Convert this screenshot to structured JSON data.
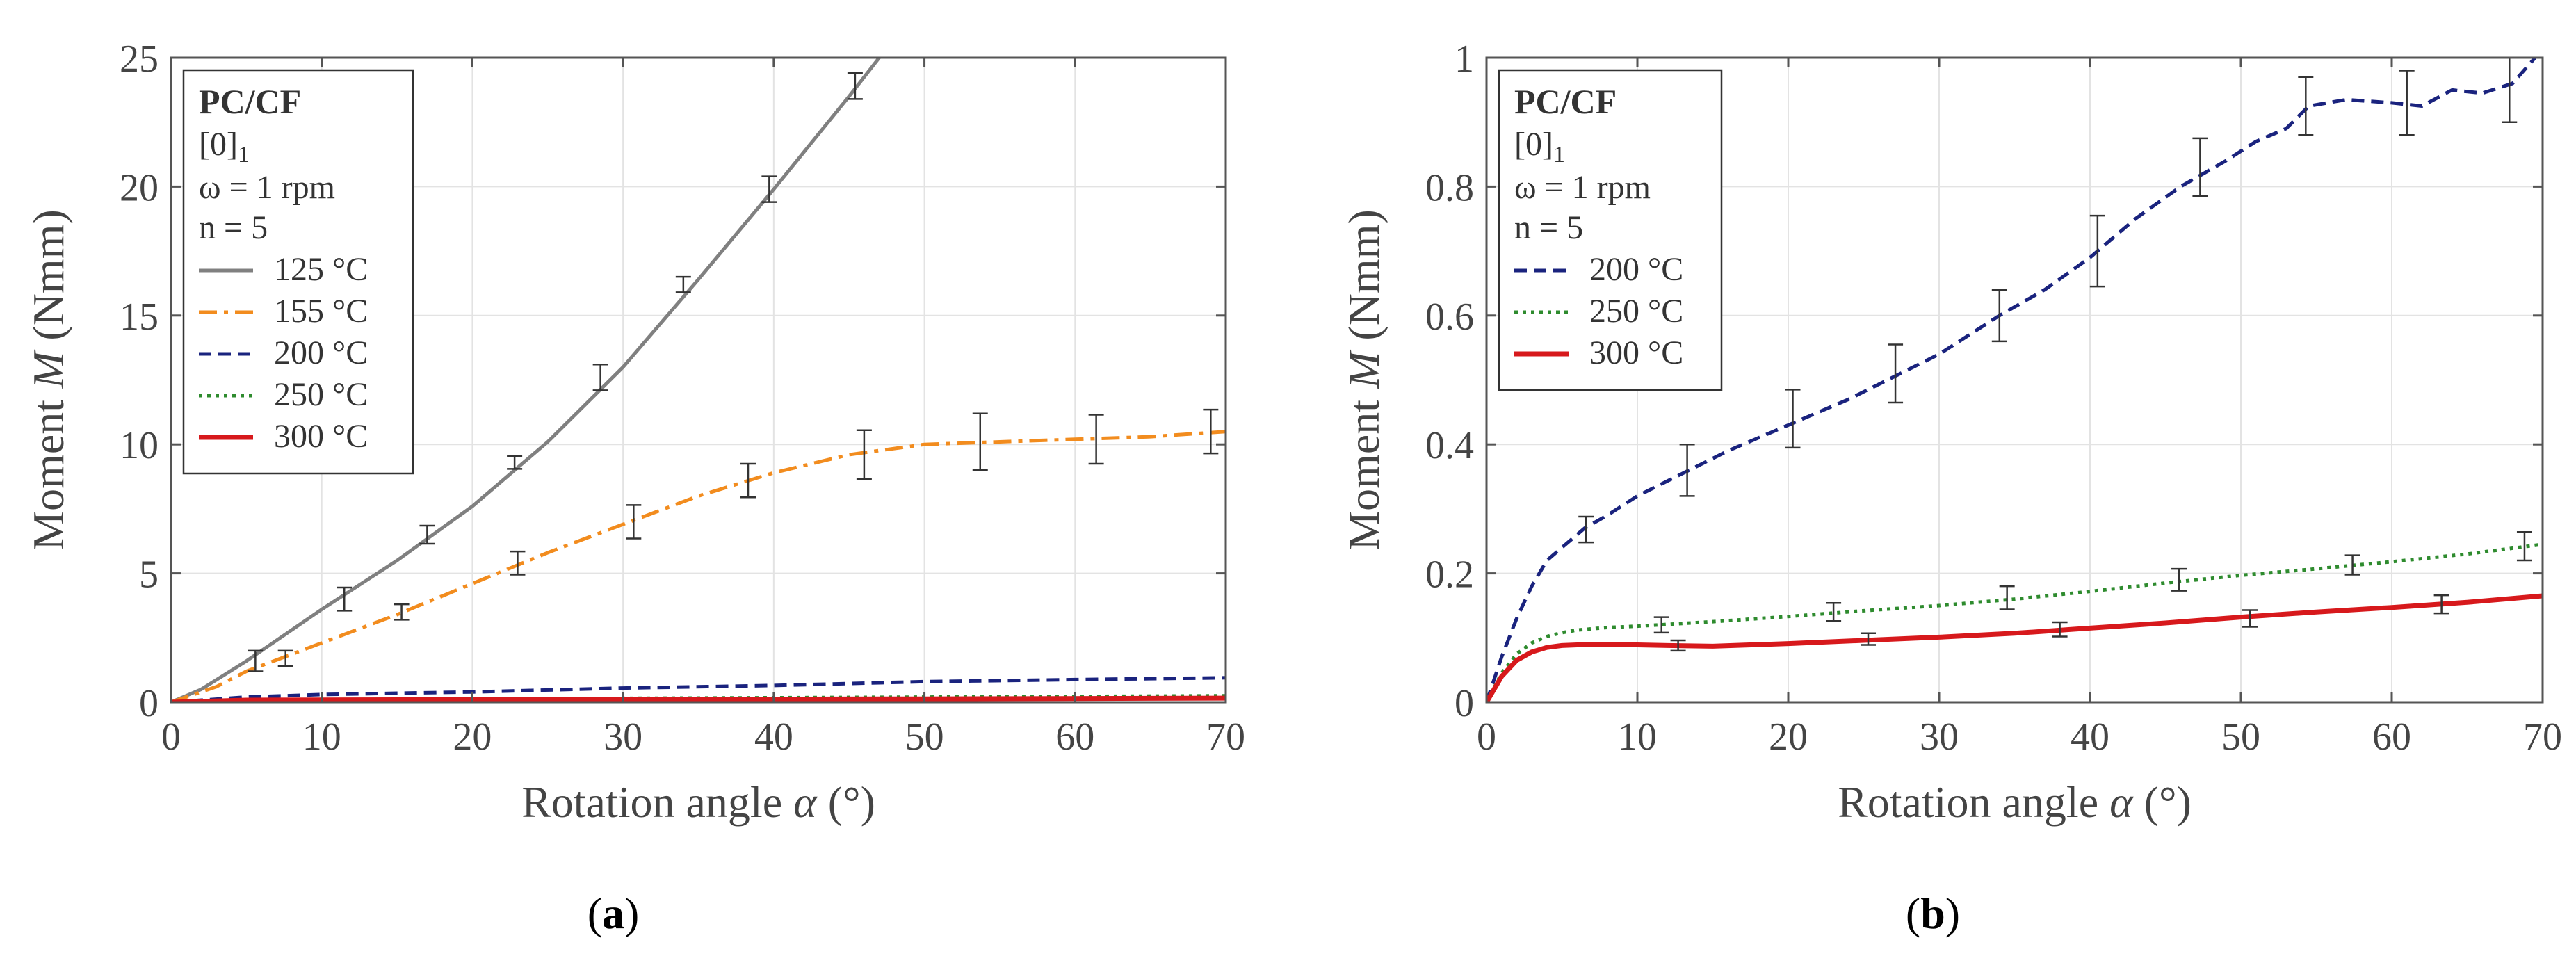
{
  "chart_data": [
    {
      "type": "line",
      "panel_label": "(a)",
      "caption": {
        "open": "(",
        "letter": "a",
        "close": ")"
      },
      "xlabel": {
        "pre": "Rotation angle ",
        "sym": "α",
        "post": " (°)"
      },
      "ylabel": {
        "pre": "Moment ",
        "sym": "M",
        "post": " (Nmm)"
      },
      "xlim": [
        0,
        70
      ],
      "ylim": [
        0,
        25
      ],
      "xticks": [
        0,
        10,
        20,
        30,
        40,
        50,
        60,
        70
      ],
      "yticks": [
        0,
        5,
        10,
        15,
        20,
        25
      ],
      "grid": true,
      "legend": {
        "placement": "top-left",
        "material": "PC/CF",
        "layup": "[0]",
        "layup_sub": "1",
        "speed": "ω = 1 rpm",
        "n": "n = 5"
      },
      "series": [
        {
          "name": "125 °C",
          "color": "#808080",
          "dash": "solid",
          "x": [
            0,
            2,
            5,
            10,
            15,
            20,
            25,
            30,
            35,
            40,
            45,
            47
          ],
          "y": [
            0,
            0.5,
            1.6,
            3.6,
            5.5,
            7.6,
            10.1,
            13.0,
            16.4,
            19.9,
            23.5,
            25.0
          ],
          "errorbars": [
            {
              "x": 5.6,
              "y": 1.6,
              "e": 0.4
            },
            {
              "x": 11.5,
              "y": 4.0,
              "e": 0.45
            },
            {
              "x": 17.0,
              "y": 6.5,
              "e": 0.35
            },
            {
              "x": 22.8,
              "y": 9.3,
              "e": 0.25
            },
            {
              "x": 28.5,
              "y": 12.6,
              "e": 0.5
            },
            {
              "x": 34.0,
              "y": 16.2,
              "e": 0.3
            },
            {
              "x": 39.7,
              "y": 19.9,
              "e": 0.5
            },
            {
              "x": 45.4,
              "y": 23.9,
              "e": 0.5
            }
          ]
        },
        {
          "name": "155 °C",
          "color": "#f28c1e",
          "dash": "dashdot",
          "x": [
            0,
            3,
            5,
            10,
            15,
            20,
            25,
            30,
            35,
            40,
            45,
            50,
            55,
            60,
            65,
            70
          ],
          "y": [
            0,
            0.6,
            1.2,
            2.3,
            3.4,
            4.6,
            5.8,
            6.9,
            8.0,
            8.9,
            9.6,
            10.0,
            10.1,
            10.2,
            10.3,
            10.5
          ],
          "errorbars": [
            {
              "x": 7.6,
              "y": 1.7,
              "e": 0.3
            },
            {
              "x": 15.3,
              "y": 3.5,
              "e": 0.3
            },
            {
              "x": 23.0,
              "y": 5.4,
              "e": 0.45
            },
            {
              "x": 30.7,
              "y": 7.0,
              "e": 0.65
            },
            {
              "x": 38.3,
              "y": 8.6,
              "e": 0.65
            },
            {
              "x": 46.0,
              "y": 9.6,
              "e": 0.95
            },
            {
              "x": 53.7,
              "y": 10.1,
              "e": 1.1
            },
            {
              "x": 61.4,
              "y": 10.2,
              "e": 0.95
            },
            {
              "x": 69.0,
              "y": 10.5,
              "e": 0.85
            }
          ]
        },
        {
          "name": "200 °C",
          "color": "#1a237e",
          "dash": "dashed",
          "x": [
            0,
            5,
            10,
            20,
            30,
            40,
            50,
            60,
            70
          ],
          "y": [
            0,
            0.2,
            0.3,
            0.4,
            0.55,
            0.65,
            0.8,
            0.88,
            0.95
          ],
          "errorbars": []
        },
        {
          "name": "250 °C",
          "color": "#2e8b2e",
          "dash": "dotted",
          "x": [
            0,
            10,
            30,
            50,
            70
          ],
          "y": [
            0,
            0.1,
            0.15,
            0.2,
            0.25
          ],
          "errorbars": []
        },
        {
          "name": "300 °C",
          "color": "#d7191c",
          "dash": "solid",
          "x": [
            0,
            5,
            10,
            30,
            50,
            70
          ],
          "y": [
            0,
            0.08,
            0.09,
            0.11,
            0.13,
            0.16
          ],
          "errorbars": []
        }
      ]
    },
    {
      "type": "line",
      "panel_label": "(b)",
      "caption": {
        "open": "(",
        "letter": "b",
        "close": ")"
      },
      "xlabel": {
        "pre": "Rotation angle ",
        "sym": "α",
        "post": " (°)"
      },
      "ylabel": {
        "pre": "Moment ",
        "sym": "M",
        "post": " (Nmm)"
      },
      "xlim": [
        0,
        70
      ],
      "ylim": [
        0,
        1
      ],
      "xticks": [
        0,
        10,
        20,
        30,
        40,
        50,
        60,
        70
      ],
      "yticks": [
        0,
        0.2,
        0.4,
        0.6,
        0.8,
        1
      ],
      "grid": true,
      "legend": {
        "placement": "top-left",
        "material": "PC/CF",
        "layup": "[0]",
        "layup_sub": "1",
        "speed": "ω = 1 rpm",
        "n": "n = 5"
      },
      "series": [
        {
          "name": "200 °C",
          "color": "#1a237e",
          "dash": "dashed",
          "x": [
            0,
            1,
            2,
            3,
            4,
            5,
            6.5,
            8,
            10,
            13,
            16,
            20,
            24,
            27,
            30,
            34,
            37,
            40,
            43,
            46,
            49,
            51,
            53,
            54.5,
            57,
            60,
            62,
            64,
            66,
            68,
            69.5
          ],
          "y": [
            0,
            0.07,
            0.13,
            0.18,
            0.22,
            0.24,
            0.27,
            0.29,
            0.32,
            0.355,
            0.39,
            0.43,
            0.47,
            0.505,
            0.54,
            0.6,
            0.64,
            0.69,
            0.75,
            0.8,
            0.84,
            0.87,
            0.89,
            0.925,
            0.935,
            0.93,
            0.925,
            0.95,
            0.945,
            0.96,
            1.0
          ],
          "errorbars": [
            {
              "x": 6.6,
              "y": 0.268,
              "e": 0.02
            },
            {
              "x": 13.3,
              "y": 0.36,
              "e": 0.04
            },
            {
              "x": 20.3,
              "y": 0.44,
              "e": 0.045
            },
            {
              "x": 27.1,
              "y": 0.51,
              "e": 0.045
            },
            {
              "x": 34.0,
              "y": 0.6,
              "e": 0.04
            },
            {
              "x": 40.5,
              "y": 0.7,
              "e": 0.055
            },
            {
              "x": 47.3,
              "y": 0.83,
              "e": 0.045
            },
            {
              "x": 54.3,
              "y": 0.925,
              "e": 0.045
            },
            {
              "x": 61.0,
              "y": 0.93,
              "e": 0.05
            },
            {
              "x": 67.8,
              "y": 0.95,
              "e": 0.05
            }
          ]
        },
        {
          "name": "250 °C",
          "color": "#2e8b2e",
          "dash": "dotted",
          "x": [
            0,
            1,
            2,
            3,
            4,
            5,
            6,
            8,
            10,
            15,
            20,
            25,
            30,
            35,
            40,
            45,
            50,
            55,
            60,
            65,
            70
          ],
          "y": [
            0,
            0.045,
            0.075,
            0.092,
            0.102,
            0.108,
            0.112,
            0.116,
            0.118,
            0.125,
            0.133,
            0.142,
            0.15,
            0.16,
            0.172,
            0.185,
            0.197,
            0.207,
            0.218,
            0.23,
            0.245
          ],
          "errorbars": [
            {
              "x": 11.6,
              "y": 0.12,
              "e": 0.012
            },
            {
              "x": 23.0,
              "y": 0.14,
              "e": 0.014
            },
            {
              "x": 34.5,
              "y": 0.162,
              "e": 0.018
            },
            {
              "x": 45.9,
              "y": 0.19,
              "e": 0.017
            },
            {
              "x": 57.4,
              "y": 0.213,
              "e": 0.015
            },
            {
              "x": 68.8,
              "y": 0.242,
              "e": 0.022
            }
          ]
        },
        {
          "name": "300 °C",
          "color": "#d7191c",
          "dash": "solid",
          "x": [
            0,
            1,
            2,
            3,
            4,
            5,
            6,
            8,
            10,
            12,
            15,
            20,
            25,
            30,
            35,
            40,
            45,
            50,
            55,
            60,
            65,
            70
          ],
          "y": [
            0,
            0.04,
            0.065,
            0.078,
            0.085,
            0.088,
            0.089,
            0.09,
            0.089,
            0.088,
            0.087,
            0.091,
            0.096,
            0.101,
            0.107,
            0.115,
            0.123,
            0.132,
            0.14,
            0.147,
            0.155,
            0.165
          ],
          "errorbars": [
            {
              "x": 12.7,
              "y": 0.088,
              "e": 0.008
            },
            {
              "x": 25.3,
              "y": 0.098,
              "e": 0.009
            },
            {
              "x": 38.0,
              "y": 0.113,
              "e": 0.011
            },
            {
              "x": 50.6,
              "y": 0.13,
              "e": 0.013
            },
            {
              "x": 63.3,
              "y": 0.152,
              "e": 0.014
            }
          ]
        }
      ]
    }
  ]
}
